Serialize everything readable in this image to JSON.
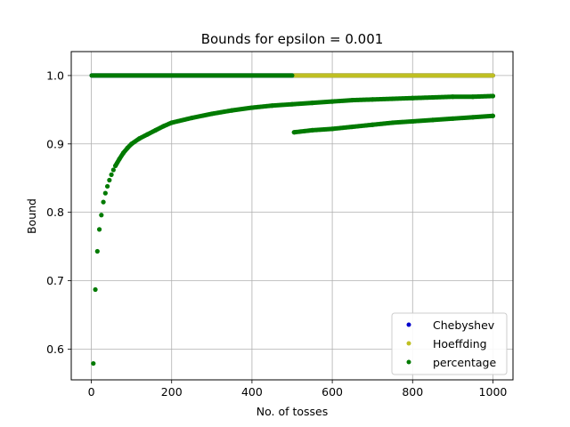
{
  "chart_data": {
    "type": "scatter",
    "title": "Bounds for epsilon = 0.001",
    "xlabel": "No. of tosses",
    "ylabel": "Bound",
    "xlim": [
      -50,
      1050
    ],
    "ylim": [
      0.555,
      1.035
    ],
    "xticks": [
      0,
      200,
      400,
      600,
      800,
      1000
    ],
    "xtick_labels": [
      "0",
      "200",
      "400",
      "600",
      "800",
      "1000"
    ],
    "yticks": [
      0.6,
      0.7,
      0.8,
      0.9,
      1.0
    ],
    "ytick_labels": [
      "0.6",
      "0.7",
      "0.8",
      "0.9",
      "1.0"
    ],
    "grid": true,
    "legend_position": "lower-right",
    "x_range": [
      1,
      1000
    ],
    "series": [
      {
        "name": "Chebyshev",
        "color": "#0000cc",
        "description": "constant bound",
        "value": 1.0
      },
      {
        "name": "Hoeffding",
        "color": "#bfbf22",
        "description": "constant bound",
        "value": 1.0
      },
      {
        "name": "percentage",
        "color": "#007a00",
        "points": [
          [
            5,
            0.579
          ],
          [
            10,
            0.687
          ],
          [
            15,
            0.743
          ],
          [
            20,
            0.775
          ],
          [
            25,
            0.796
          ],
          [
            30,
            0.815
          ],
          [
            35,
            0.828
          ],
          [
            40,
            0.838
          ],
          [
            45,
            0.847
          ],
          [
            50,
            0.855
          ],
          [
            55,
            0.862
          ],
          [
            60,
            0.868
          ],
          [
            70,
            0.878
          ],
          [
            80,
            0.887
          ],
          [
            90,
            0.894
          ],
          [
            100,
            0.9
          ],
          [
            120,
            0.908
          ],
          [
            140,
            0.914
          ],
          [
            160,
            0.92
          ],
          [
            180,
            0.926
          ],
          [
            200,
            0.931
          ],
          [
            250,
            0.938
          ],
          [
            300,
            0.944
          ],
          [
            350,
            0.949
          ],
          [
            400,
            0.953
          ],
          [
            450,
            0.956
          ],
          [
            500,
            0.958
          ],
          [
            550,
            0.96
          ],
          [
            600,
            0.962
          ],
          [
            650,
            0.964
          ],
          [
            700,
            0.965
          ],
          [
            750,
            0.966
          ],
          [
            800,
            0.967
          ],
          [
            850,
            0.968
          ],
          [
            900,
            0.969
          ],
          [
            950,
            0.969
          ],
          [
            1000,
            0.97
          ]
        ],
        "lower_branch": [
          [
            505,
            0.917
          ],
          [
            550,
            0.92
          ],
          [
            600,
            0.922
          ],
          [
            650,
            0.925
          ],
          [
            700,
            0.928
          ],
          [
            750,
            0.931
          ],
          [
            800,
            0.933
          ],
          [
            850,
            0.935
          ],
          [
            900,
            0.937
          ],
          [
            950,
            0.939
          ],
          [
            1000,
            0.941
          ]
        ]
      }
    ]
  }
}
